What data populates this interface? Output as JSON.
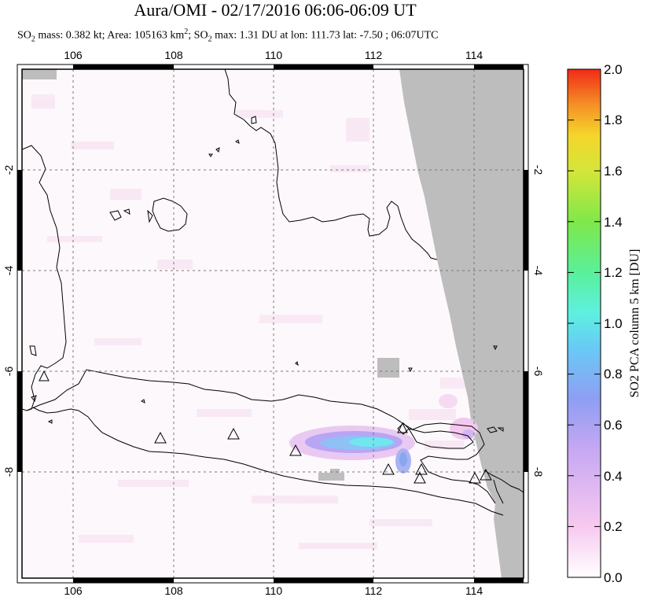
{
  "title": "Aura/OMI - 02/17/2016 06:06-06:09 UT",
  "subtitle": {
    "p1": "SO",
    "p1sub": "2",
    "p2": " mass: 0.382 kt; Area: 105163 km",
    "p2sup": "2",
    "p3": "; SO",
    "p3sub": "2",
    "p4": " max: 1.31 DU at lon: 111.73 lat: -7.50 ; 06:07UTC"
  },
  "map": {
    "lon_ticks": [
      "106",
      "108",
      "110",
      "112",
      "114"
    ],
    "lat_ticks": [
      "-2",
      "-4",
      "-6",
      "-8"
    ],
    "lat_ticks_right": [
      "-2",
      "-4",
      "-6",
      "-8"
    ],
    "volcano_markers": 12
  },
  "colorbar": {
    "label": "SO2 PCA column 5 km [DU]",
    "ticks": [
      "0.0",
      "0.2",
      "0.4",
      "0.6",
      "0.8",
      "1.0",
      "1.2",
      "1.4",
      "1.6",
      "1.8",
      "2.0"
    ],
    "min": 0.0,
    "max": 2.0,
    "colors": [
      "#ffffff",
      "#f7c9f0",
      "#b39cf0",
      "#7aa6f5",
      "#66e6f2",
      "#5cf09a",
      "#7de84a",
      "#c8e63a",
      "#f5e12b",
      "#f59a25",
      "#f02b17"
    ]
  }
}
